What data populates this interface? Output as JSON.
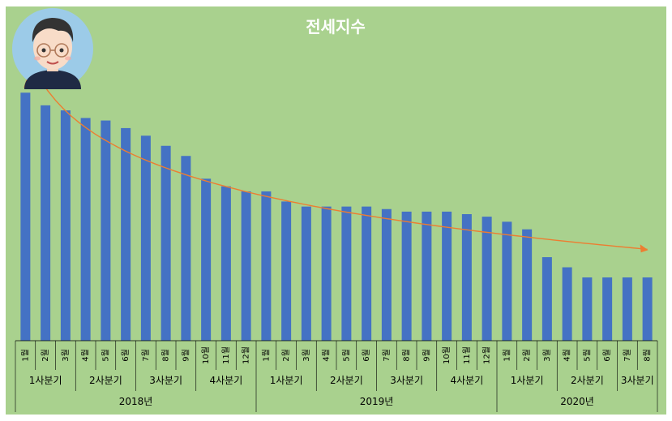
{
  "chart_data": {
    "type": "bar",
    "title": "전세지수",
    "bar_color": "#4472c4",
    "background_color": "#a9d18e",
    "trendline_color": "#ed7d31",
    "trendline": true,
    "grid": false,
    "ylim": [
      0,
      100
    ],
    "categories": [
      "1월",
      "2월",
      "3월",
      "4월",
      "5월",
      "6월",
      "7월",
      "8월",
      "9월",
      "10월",
      "11월",
      "12월",
      "1월",
      "2월",
      "3월",
      "4월",
      "5월",
      "6월",
      "7월",
      "8월",
      "9월",
      "10월",
      "11월",
      "12월",
      "1월",
      "2월",
      "3월",
      "4월",
      "5월",
      "6월",
      "7월",
      "8월"
    ],
    "values": [
      98,
      93,
      91,
      88,
      87,
      84,
      81,
      77,
      73,
      64,
      61,
      59,
      59,
      55,
      53,
      53,
      53,
      53,
      52,
      51,
      51,
      51,
      50,
      49,
      47,
      44,
      33,
      29,
      25,
      25,
      25,
      25
    ],
    "quarters": [
      {
        "label": "1사분기",
        "span": 3
      },
      {
        "label": "2사분기",
        "span": 3
      },
      {
        "label": "3사분기",
        "span": 3
      },
      {
        "label": "4사분기",
        "span": 3
      },
      {
        "label": "1사분기",
        "span": 3
      },
      {
        "label": "2사분기",
        "span": 3
      },
      {
        "label": "3사분기",
        "span": 3
      },
      {
        "label": "4사분기",
        "span": 3
      },
      {
        "label": "1사분기",
        "span": 3
      },
      {
        "label": "2사분기",
        "span": 3
      },
      {
        "label": "3사분기",
        "span": 2
      }
    ],
    "years": [
      {
        "label": "2018년",
        "span": 12
      },
      {
        "label": "2019년",
        "span": 12
      },
      {
        "label": "2020년",
        "span": 8
      }
    ]
  },
  "avatar": {
    "name": "avatar"
  }
}
